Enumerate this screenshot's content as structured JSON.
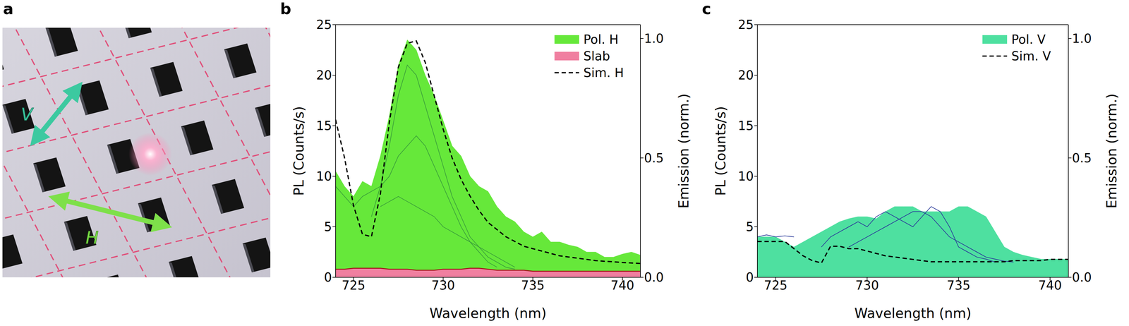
{
  "diagram": {
    "panel": "a",
    "labels": [
      "V",
      "H"
    ]
  },
  "chart_data": [
    {
      "panel": "b",
      "type": "area",
      "xlabel": "Wavelength (nm)",
      "ylabel": "PL (Counts/s)",
      "y2label": "Emission (norm.)",
      "x": [
        724,
        724.5,
        725,
        725.5,
        726,
        726.5,
        727,
        727.5,
        728,
        728.5,
        729,
        729.5,
        730,
        730.5,
        731,
        731.5,
        732,
        732.5,
        733,
        733.5,
        734,
        734.5,
        735,
        735.5,
        736,
        736.5,
        737,
        737.5,
        738,
        738.5,
        739,
        739.5,
        740,
        740.5,
        741
      ],
      "xlim": [
        724,
        741
      ],
      "xticks": [
        725,
        730,
        735,
        740
      ],
      "ylim": [
        0,
        25
      ],
      "yticks": [
        0,
        5,
        10,
        15,
        20,
        25
      ],
      "y2lim": [
        0,
        1.058
      ],
      "y2ticks": [
        {
          "value": 0,
          "label": "0.0"
        },
        0.5,
        {
          "value": 1,
          "label": "1.0"
        }
      ],
      "legend": "upper right",
      "series": [
        {
          "name": "Pol. H",
          "type": "area",
          "color": "#66e83a",
          "values": [
            10.5,
            9,
            8,
            9.5,
            9,
            12,
            16,
            21,
            23.5,
            22.5,
            20,
            18,
            15.5,
            13,
            12,
            10,
            9,
            8.5,
            7,
            6,
            5.5,
            4.5,
            4,
            4.5,
            3.5,
            3.5,
            3.2,
            3,
            2.5,
            2.5,
            2,
            2,
            2.3,
            2.5,
            2.2
          ]
        },
        {
          "name": "Slab",
          "type": "area",
          "color": "#f07fa0",
          "values": [
            0.8,
            0.8,
            0.9,
            0.9,
            0.9,
            0.9,
            0.8,
            0.8,
            0.8,
            0.7,
            0.7,
            0.7,
            0.8,
            0.8,
            0.8,
            0.9,
            0.9,
            0.8,
            0.7,
            0.7,
            0.7,
            0.7,
            0.6,
            0.6,
            0.6,
            0.6,
            0.6,
            0.6,
            0.6,
            0.6,
            0.6,
            0.6,
            0.6,
            0.6,
            0.6
          ]
        },
        {
          "type": "line",
          "line_style": "solid",
          "color": "#3a9f3a",
          "values": [
            null,
            null,
            null,
            null,
            6,
            9,
            13,
            18,
            21,
            20,
            17,
            14,
            11,
            8,
            6,
            4,
            3,
            2,
            1.5,
            1,
            0.8,
            null,
            null,
            null,
            null,
            null,
            null,
            null,
            null,
            null,
            null,
            null,
            null,
            null,
            null
          ]
        },
        {
          "type": "line",
          "line_style": "solid",
          "color": "#3a9f3a",
          "values": [
            9,
            8,
            7,
            8,
            8.5,
            9,
            10,
            12,
            13,
            14,
            13,
            11,
            9,
            7,
            5,
            3.5,
            2.5,
            1.5,
            1,
            null,
            null,
            null,
            null,
            null,
            null,
            null,
            null,
            null,
            null,
            null,
            null,
            null,
            null,
            null,
            null
          ]
        },
        {
          "type": "line",
          "line_style": "solid",
          "color": "#3a9f3a",
          "values": [
            null,
            null,
            null,
            null,
            null,
            7,
            7.5,
            8,
            7.5,
            7,
            6.5,
            6,
            5,
            4.5,
            4,
            3.5,
            3,
            2.5,
            2,
            1.5,
            1,
            null,
            null,
            null,
            null,
            null,
            null,
            null,
            null,
            null,
            null,
            null,
            null,
            null,
            null
          ]
        },
        {
          "name": "Sim. H",
          "type": "line",
          "line_style": "dashed",
          "axis": "y2",
          "color": "#000000",
          "values": [
            0.66,
            0.5,
            0.3,
            0.18,
            0.17,
            0.35,
            0.65,
            0.88,
            0.98,
            0.99,
            0.9,
            0.76,
            0.62,
            0.5,
            0.41,
            0.34,
            0.28,
            0.23,
            0.2,
            0.17,
            0.15,
            0.13,
            0.12,
            0.11,
            0.1,
            0.09,
            0.085,
            0.08,
            0.075,
            0.07,
            0.067,
            0.065,
            0.062,
            0.06,
            0.058
          ]
        }
      ]
    },
    {
      "panel": "c",
      "type": "area",
      "xlabel": "Wavelength (nm)",
      "ylabel": "PL (Counts/s)",
      "y2label": "Emission (norm.)",
      "x": [
        724,
        724.5,
        725,
        725.5,
        726,
        726.5,
        727,
        727.5,
        728,
        728.5,
        729,
        729.5,
        730,
        730.5,
        731,
        731.5,
        732,
        732.5,
        733,
        733.5,
        734,
        734.5,
        735,
        735.5,
        736,
        736.5,
        737,
        737.5,
        738,
        738.5,
        739,
        739.5,
        740,
        740.5,
        741
      ],
      "xlim": [
        724,
        741
      ],
      "xticks": [
        725,
        730,
        735,
        740
      ],
      "ylim": [
        0,
        25
      ],
      "yticks": [
        0,
        5,
        10,
        15,
        20,
        25
      ],
      "y2lim": [
        0,
        1.058
      ],
      "y2ticks": [
        {
          "value": 0,
          "label": "0.0"
        },
        0.5,
        {
          "value": 1,
          "label": "1.0"
        }
      ],
      "legend": "upper right",
      "series": [
        {
          "name": "Pol. V",
          "type": "area",
          "color": "#4ee0a0",
          "values": [
            4,
            4,
            4,
            3.5,
            3,
            3.5,
            4,
            4.5,
            5,
            5.5,
            5.8,
            6,
            6,
            5.8,
            6.5,
            7,
            7,
            7,
            6.5,
            6.5,
            6.5,
            6.5,
            7,
            7,
            6.5,
            6,
            4.5,
            3,
            2.5,
            2.2,
            2,
            1.8,
            1.8,
            1.8,
            1.8
          ]
        },
        {
          "type": "line",
          "line_style": "solid",
          "color": "#2b3a9a",
          "values": [
            null,
            null,
            null,
            null,
            null,
            null,
            null,
            3,
            4,
            4.5,
            5,
            5.5,
            5,
            6,
            6.5,
            6,
            5.5,
            5,
            6,
            7,
            6.5,
            5,
            3,
            2.5,
            2,
            1.8,
            1.5,
            null,
            null,
            null,
            null,
            null,
            null,
            null,
            null
          ]
        },
        {
          "type": "line",
          "line_style": "solid",
          "color": "#2b3a9a",
          "values": [
            null,
            null,
            null,
            null,
            null,
            null,
            null,
            null,
            null,
            null,
            3,
            3.5,
            4,
            4.5,
            5,
            5.5,
            6,
            6.5,
            6.5,
            6,
            5,
            4,
            3.5,
            3,
            2.5,
            2,
            1.8,
            1.6,
            1.5,
            null,
            null,
            null,
            null,
            null,
            null
          ]
        },
        {
          "type": "line",
          "line_style": "solid",
          "color": "#2b3a9a",
          "values": [
            4,
            4.2,
            4,
            4.1,
            4,
            null,
            null,
            null,
            null,
            null,
            null,
            null,
            null,
            null,
            null,
            null,
            null,
            null,
            null,
            null,
            null,
            null,
            null,
            null,
            null,
            null,
            null,
            null,
            null,
            null,
            null,
            null,
            null,
            null,
            null
          ]
        },
        {
          "name": "Sim. V",
          "type": "line",
          "line_style": "dashed",
          "axis": "y2",
          "color": "#000000",
          "values": [
            0.15,
            0.15,
            0.15,
            0.15,
            0.12,
            0.09,
            0.07,
            0.06,
            0.13,
            0.13,
            0.12,
            0.12,
            0.11,
            0.1,
            0.09,
            0.085,
            0.08,
            0.075,
            0.07,
            0.065,
            0.065,
            0.065,
            0.065,
            0.065,
            0.065,
            0.065,
            0.065,
            0.065,
            0.07,
            0.07,
            0.07,
            0.07,
            0.075,
            0.075,
            0.075
          ]
        }
      ]
    }
  ]
}
